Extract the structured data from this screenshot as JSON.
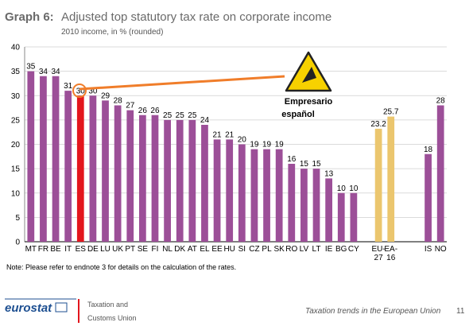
{
  "chart_data": {
    "type": "bar",
    "title_label": "Graph 6:",
    "title": "Adjusted top statutory tax rate on corporate income",
    "subtitle": "2010 income, in % (rounded)",
    "categories": [
      "MT",
      "FR",
      "BE",
      "IT",
      "ES",
      "DE",
      "LU",
      "UK",
      "PT",
      "SE",
      "FI",
      "NL",
      "DK",
      "AT",
      "EL",
      "EE",
      "HU",
      "SI",
      "CZ",
      "PL",
      "SK",
      "RO",
      "LV",
      "LT",
      "IE",
      "BG",
      "CY",
      null,
      "EU-27",
      "EA-16",
      null,
      null,
      "IS",
      "NO"
    ],
    "values": [
      35,
      34,
      34,
      31,
      30,
      30,
      29,
      28,
      27,
      26,
      26,
      25,
      25,
      25,
      24,
      21,
      21,
      20,
      19,
      19,
      19,
      16,
      15,
      15,
      13,
      10,
      10,
      null,
      23.2,
      25.7,
      null,
      null,
      18,
      28
    ],
    "color": "#9c4f98",
    "colors": {
      "ES": "#e3161d",
      "EU-27": "#ebc66e",
      "EA-16": "#ebc66e"
    },
    "ylim": [
      0,
      40
    ],
    "yticks": [
      0,
      5,
      10,
      15,
      20,
      25,
      30,
      35,
      40
    ],
    "grid": true,
    "annotations": [
      "Empresario",
      "español"
    ],
    "note": "Note: Please refer to endnote 3 for details on the calculation of the rates."
  },
  "footer": {
    "logo": "eurostat",
    "unit_1": "Taxation and",
    "unit_2": "Customs Union",
    "publication": "Taxation trends in the European Union",
    "page": "11"
  }
}
